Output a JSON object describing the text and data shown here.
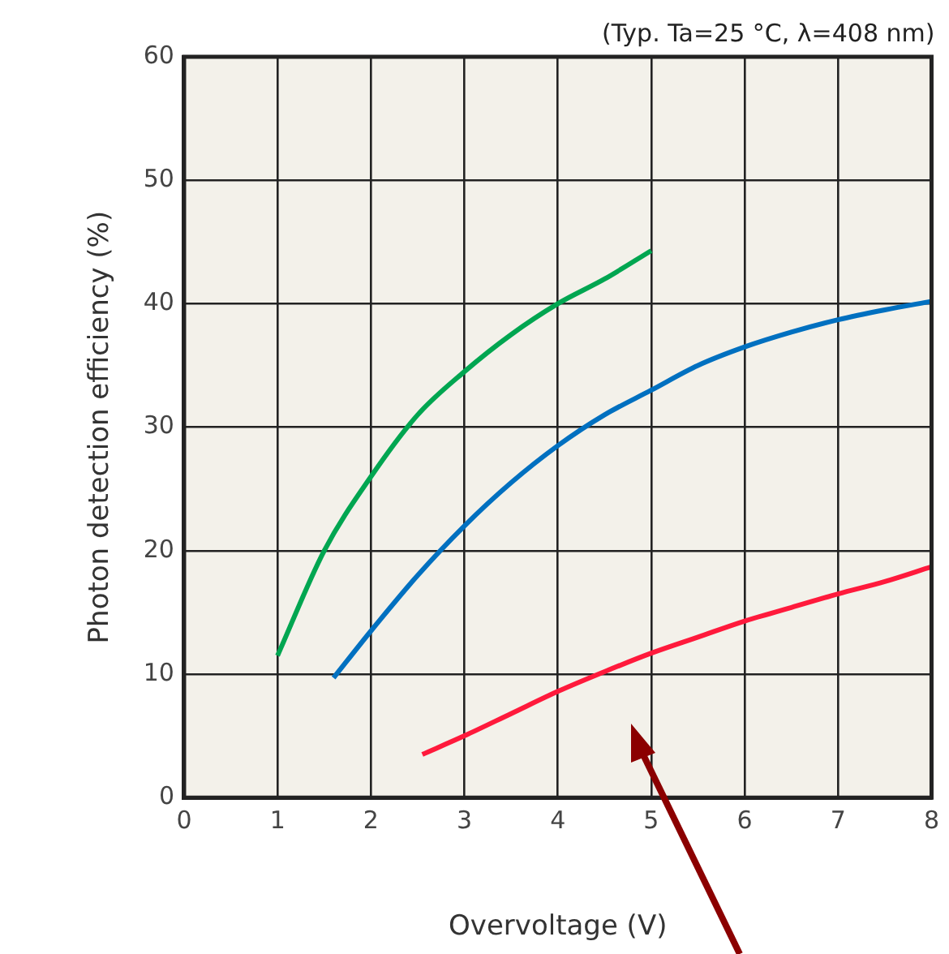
{
  "chart_data": {
    "type": "line",
    "xlabel": "Overvoltage (V)",
    "ylabel": "Photon detection efficiency (%)",
    "annotations": [
      "(Typ. Ta=25 °C, λ=408 nm)"
    ],
    "xlim": [
      0,
      8
    ],
    "xticks": [
      0,
      1,
      2,
      3,
      4,
      5,
      6,
      7,
      8
    ],
    "ylim": [
      0,
      60
    ],
    "yticks": [
      0,
      10,
      20,
      30,
      40,
      50,
      60
    ],
    "grid": true,
    "legend": false,
    "marker": "none",
    "line_style": "solid",
    "series": [
      {
        "color": "#00a651",
        "x": [
          1,
          1.5,
          2,
          2.5,
          3,
          3.5,
          4,
          4.5,
          5
        ],
        "values": [
          11.5,
          20,
          26,
          31,
          34.5,
          37.5,
          40,
          42,
          44.3
        ]
      },
      {
        "color": "#0070c0",
        "x": [
          1.6,
          2,
          2.5,
          3,
          3.5,
          4,
          4.5,
          5,
          5.5,
          6,
          6.5,
          7,
          7.5,
          8
        ],
        "values": [
          9.7,
          13.5,
          18,
          22,
          25.5,
          28.5,
          31,
          33,
          35,
          36.5,
          37.7,
          38.7,
          39.5,
          40.2
        ]
      },
      {
        "color": "#ff1a3c",
        "x": [
          2.55,
          3,
          3.5,
          4,
          4.5,
          5,
          5.5,
          6,
          6.5,
          7,
          7.5,
          8
        ],
        "values": [
          3.5,
          5,
          6.8,
          8.6,
          10.2,
          11.7,
          13,
          14.3,
          15.4,
          16.5,
          17.5,
          18.7
        ]
      }
    ]
  }
}
